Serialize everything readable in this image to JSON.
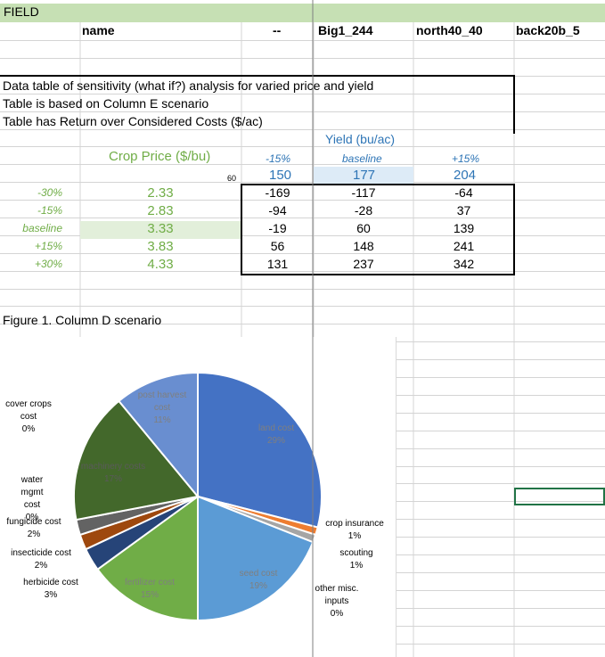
{
  "sheet": {
    "band_title": "FIELD",
    "headers": {
      "name": "name",
      "dash": "--",
      "big": "Big1_244",
      "north": "north40_40",
      "back": "back20b_5"
    }
  },
  "table": {
    "desc1": "Data table of sensitivity (what if?) analysis for varied price and yield",
    "desc2": "Table is based on Column E scenario",
    "desc3": "Table has Return over Considered Costs ($/ac)",
    "yield_header": "Yield (bu/ac)",
    "crop_price_header": "Crop Price ($/bu)",
    "yield_pct": [
      "-15%",
      "baseline",
      "+15%"
    ],
    "corner_value": "60",
    "yield_values": [
      "150",
      "177",
      "204"
    ],
    "rows": [
      {
        "pct": "-30%",
        "price": "2.33",
        "vals": [
          "-169",
          "-117",
          "-64"
        ]
      },
      {
        "pct": "-15%",
        "price": "2.83",
        "vals": [
          "-94",
          "-28",
          "37"
        ]
      },
      {
        "pct": "baseline",
        "price": "3.33",
        "vals": [
          "-19",
          "60",
          "139"
        ]
      },
      {
        "pct": "+15%",
        "price": "3.83",
        "vals": [
          "56",
          "148",
          "241"
        ]
      },
      {
        "pct": "+30%",
        "price": "4.33",
        "vals": [
          "131",
          "237",
          "342"
        ]
      }
    ]
  },
  "figure_title": "Figure 1. Column D scenario",
  "chart_data": {
    "type": "pie",
    "slices": [
      {
        "name": "land cost",
        "value": 29,
        "label1": "land cost",
        "label2": "",
        "pct": "29%",
        "color": "#4472c4"
      },
      {
        "name": "crop insurance",
        "value": 1,
        "label1": "crop insurance",
        "label2": "",
        "pct": "1%",
        "color": "#ed7d31"
      },
      {
        "name": "scouting",
        "value": 1,
        "label1": "scouting",
        "label2": "",
        "pct": "1%",
        "color": "#a5a5a5"
      },
      {
        "name": "other misc. inputs",
        "value": 0,
        "label1": "other misc.",
        "label2": "inputs",
        "pct": "0%",
        "color": "#ffc000"
      },
      {
        "name": "seed cost",
        "value": 19,
        "label1": "seed cost",
        "label2": "",
        "pct": "19%",
        "color": "#5b9bd5"
      },
      {
        "name": "fertilizer cost",
        "value": 15,
        "label1": "fertilizer cost",
        "label2": "",
        "pct": "15%",
        "color": "#70ad47"
      },
      {
        "name": "herbicide cost",
        "value": 3,
        "label1": "herbicide cost",
        "label2": "",
        "pct": "3%",
        "color": "#264478"
      },
      {
        "name": "insecticide cost",
        "value": 2,
        "label1": "insecticide cost",
        "label2": "",
        "pct": "2%",
        "color": "#9e480e"
      },
      {
        "name": "fungicide cost",
        "value": 2,
        "label1": "fungicide cost",
        "label2": "",
        "pct": "2%",
        "color": "#636363"
      },
      {
        "name": "water mgmt cost",
        "value": 0,
        "label1": "water",
        "label2": "mgmt",
        "label3": "cost",
        "pct": "0%",
        "color": "#997300"
      },
      {
        "name": "machinery costs",
        "value": 17,
        "label1": "machinery costs",
        "label2": "",
        "pct": "17%",
        "color": "#43682b"
      },
      {
        "name": "cover crops cost",
        "value": 0,
        "label1": "cover crops",
        "label2": "cost",
        "pct": "0%",
        "color": "#698ed0"
      },
      {
        "name": "post harvest cost",
        "value": 11,
        "label1": "post harvest",
        "label2": "cost",
        "pct": "11%",
        "color": "#698ed0"
      }
    ]
  }
}
